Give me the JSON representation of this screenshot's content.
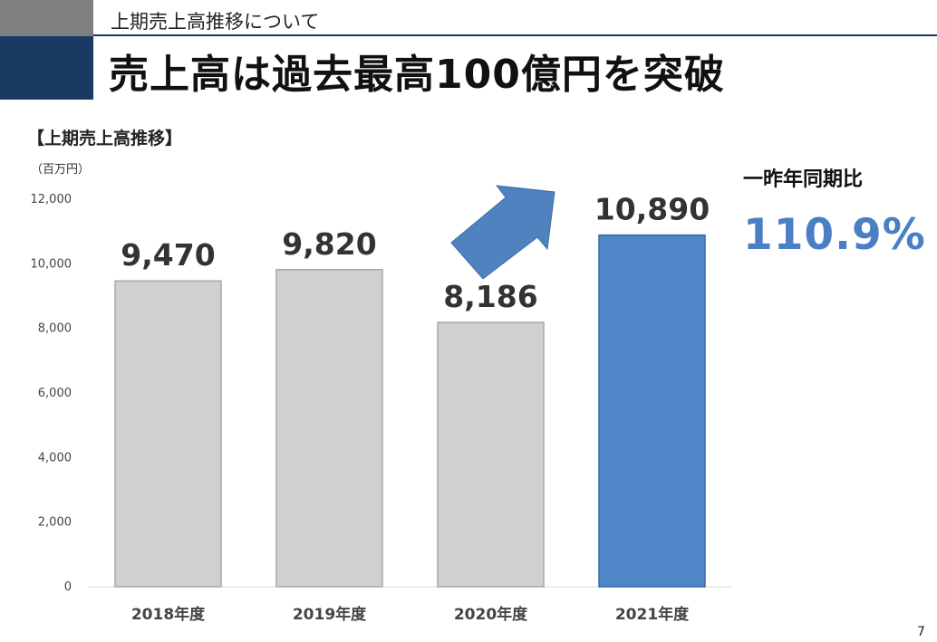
{
  "header": {
    "subtitle": "上期売上高推移について",
    "headline": "売上高は過去最高100億円を突破"
  },
  "comparison": {
    "label": "一昨年同期比",
    "value": "110.9%"
  },
  "page_number": "7",
  "colors": {
    "bar_default": "#d0d0d0",
    "bar_highlight": "#4f86c8",
    "header_navy": "#1b3a63",
    "header_gray": "#7f7f7f",
    "accent_text": "#4a7fc4",
    "arrow": "#4f82be"
  },
  "chart_data": {
    "type": "bar",
    "title": "【上期売上高推移】",
    "ylabel": "（百万円）",
    "xlabel": "",
    "categories": [
      "2018年度",
      "2019年度",
      "2020年度",
      "2021年度"
    ],
    "values": [
      9470,
      9820,
      8186,
      10890
    ],
    "data_labels": [
      "9,470",
      "9,820",
      "8,186",
      "10,890"
    ],
    "highlight_index": 3,
    "ylim": [
      0,
      12000
    ],
    "yticks": [
      0,
      2000,
      4000,
      6000,
      8000,
      10000,
      12000
    ],
    "ytick_labels": [
      "0",
      "2,000",
      "4,000",
      "6,000",
      "8,000",
      "10,000",
      "12,000"
    ],
    "grid": false,
    "annotation": "arrow-up-right"
  }
}
